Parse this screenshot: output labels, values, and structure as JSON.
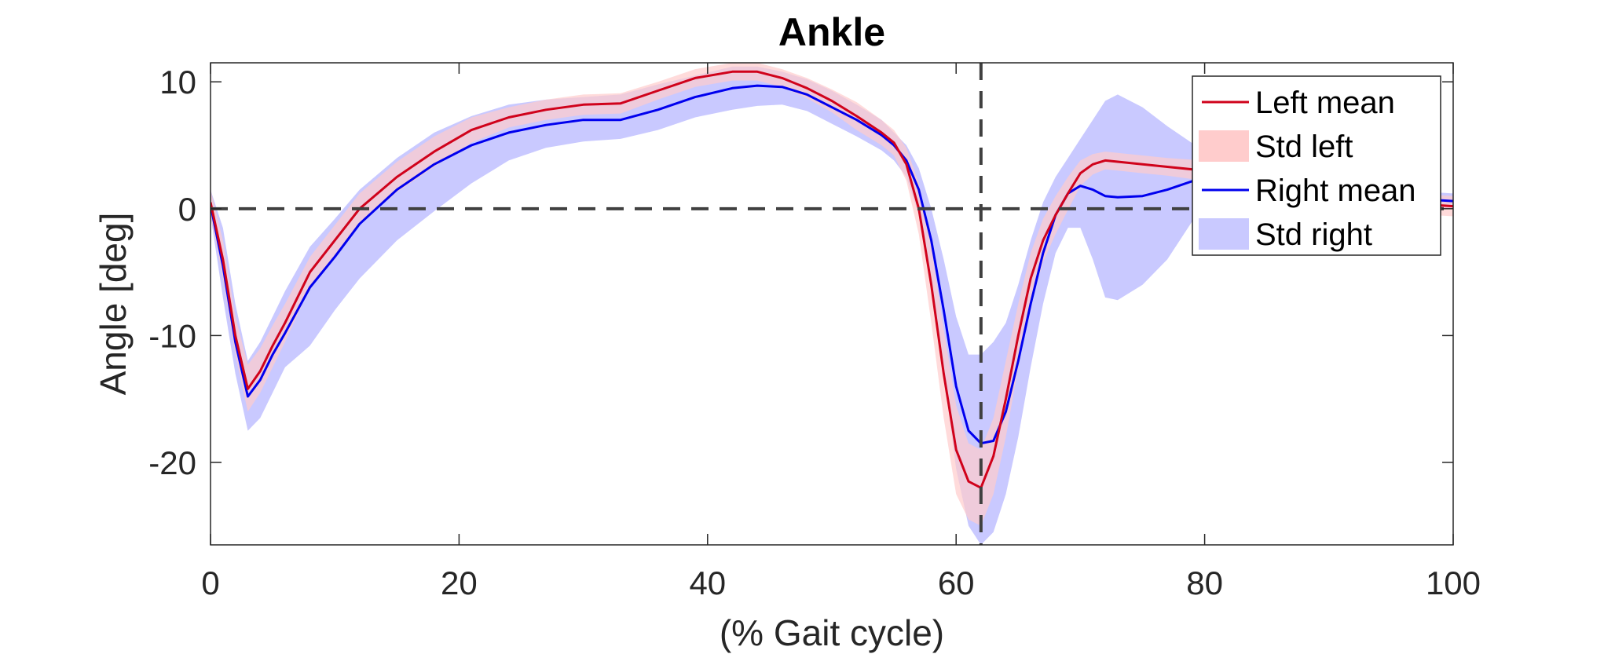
{
  "chart_data": {
    "type": "line",
    "title": "Ankle",
    "xlabel": "(% Gait cycle)",
    "ylabel": "Angle [deg]",
    "xlim": [
      0,
      100
    ],
    "ylim": [
      -26.5,
      11.5
    ],
    "xticks": [
      0,
      20,
      40,
      60,
      80,
      100
    ],
    "yticks": [
      10,
      0,
      -10,
      -20
    ],
    "xtick_labels": [
      "0",
      "20",
      "40",
      "60",
      "80",
      "100"
    ],
    "ytick_labels": [
      "10",
      "0",
      "-10",
      "-20"
    ],
    "grid": false,
    "legend_position": "top-right",
    "reference_lines": {
      "horizontal_y": 0,
      "vertical_x": 62
    },
    "x": [
      0,
      1,
      2,
      3,
      4,
      5,
      6,
      8,
      10,
      12,
      15,
      18,
      21,
      24,
      27,
      30,
      33,
      36,
      39,
      42,
      44,
      46,
      48,
      50,
      52,
      54,
      55,
      56,
      57,
      58,
      59,
      60,
      61,
      62,
      63,
      64,
      65,
      66,
      67,
      68,
      69,
      70,
      71,
      72,
      73,
      75,
      77,
      80,
      85,
      90,
      95,
      100
    ],
    "series": [
      {
        "name": "Left mean",
        "color": "#d0021b",
        "values": [
          0.5,
          -4,
          -10,
          -14.2,
          -12.8,
          -10.8,
          -9,
          -5,
          -2.5,
          0,
          2.5,
          4.5,
          6.2,
          7.2,
          7.8,
          8.2,
          8.3,
          9.3,
          10.3,
          10.8,
          10.8,
          10.3,
          9.5,
          8.5,
          7.3,
          6,
          5.2,
          3.5,
          0,
          -6,
          -13,
          -19,
          -21.5,
          -22,
          -19.5,
          -15,
          -10,
          -5.5,
          -2.5,
          -0.5,
          1.2,
          2.8,
          3.5,
          3.8,
          3.7,
          3.5,
          3.3,
          3.0,
          2.2,
          1.2,
          0.5,
          0.2
        ]
      },
      {
        "name": "Std left",
        "color": "#ffcccc",
        "upper": [
          1.5,
          -2.5,
          -8.5,
          -12.3,
          -11,
          -9.2,
          -7.5,
          -3.8,
          -1.3,
          1.2,
          3.7,
          5.7,
          7.2,
          8,
          8.6,
          9,
          9.1,
          10,
          11,
          11.5,
          11.5,
          11,
          10.3,
          9.4,
          8.4,
          7,
          6.2,
          4.8,
          2,
          -3,
          -9.5,
          -15.5,
          -18.5,
          -19,
          -16.5,
          -12,
          -7.5,
          -3.5,
          -0.8,
          1,
          2.5,
          3.8,
          4.3,
          4.5,
          4.4,
          4.2,
          4.0,
          3.8,
          3.0,
          2.0,
          1.3,
          1.0
        ],
        "lower": [
          -0.5,
          -5.5,
          -11.5,
          -16,
          -14.5,
          -12.5,
          -10.5,
          -6.2,
          -3.7,
          -1.2,
          1.3,
          3.3,
          5.2,
          6.4,
          7,
          7.4,
          7.5,
          8.6,
          9.6,
          10.1,
          10.1,
          9.6,
          8.7,
          7.6,
          6.2,
          5,
          4.2,
          2.2,
          -2,
          -9,
          -16.5,
          -22.5,
          -24.5,
          -25,
          -22.5,
          -18,
          -12.5,
          -7.5,
          -4.2,
          -2,
          -0.1,
          1.8,
          2.7,
          3.1,
          3.0,
          2.8,
          2.6,
          2.2,
          1.4,
          0.4,
          -0.3,
          -0.6
        ]
      },
      {
        "name": "Right mean",
        "color": "#0000ee",
        "values": [
          0.3,
          -4.5,
          -10.5,
          -14.8,
          -13.5,
          -11.5,
          -9.8,
          -6.2,
          -3.8,
          -1.2,
          1.5,
          3.5,
          5,
          6,
          6.6,
          7,
          7,
          7.8,
          8.8,
          9.5,
          9.7,
          9.6,
          9,
          8,
          7,
          5.8,
          5,
          3.8,
          1.5,
          -2.5,
          -8,
          -14,
          -17.5,
          -18.5,
          -18.3,
          -16,
          -12,
          -7.5,
          -3.5,
          -0.5,
          1.2,
          1.8,
          1.5,
          1,
          0.9,
          1,
          1.5,
          2.5,
          2.2,
          1.4,
          0.9,
          0.6
        ]
      },
      {
        "name": "Std right",
        "color": "#c9c9ff",
        "upper": [
          1.5,
          -1.5,
          -7.5,
          -12,
          -10.5,
          -8.5,
          -6.5,
          -3,
          -0.8,
          1.5,
          4,
          6,
          7.3,
          8.2,
          8.6,
          8.8,
          9,
          9.8,
          10.5,
          11.2,
          11.2,
          10.8,
          10.2,
          9.3,
          8.2,
          7,
          6,
          5,
          3.2,
          0,
          -4,
          -8.5,
          -11.5,
          -11.5,
          -10.5,
          -9,
          -6,
          -2.5,
          0.5,
          2.5,
          4,
          5.5,
          7,
          8.5,
          9,
          8,
          6.5,
          4.5,
          3,
          2,
          1.5,
          1.2
        ],
        "lower": [
          -0.5,
          -7,
          -13,
          -17.5,
          -16.5,
          -14.5,
          -12.5,
          -10.8,
          -8,
          -5.5,
          -2.5,
          -0.2,
          2,
          3.8,
          4.8,
          5.3,
          5.5,
          6.2,
          7.2,
          7.8,
          8.1,
          8.2,
          7.7,
          6.7,
          5.7,
          4.6,
          3.8,
          2.5,
          -0.5,
          -5.5,
          -13,
          -20.5,
          -25,
          -26.5,
          -25.5,
          -22.5,
          -18,
          -12.5,
          -7.5,
          -3.5,
          -1.5,
          -1.5,
          -4,
          -7,
          -7.2,
          -6,
          -4,
          0.5,
          1.2,
          0.8,
          0.3,
          0
        ]
      }
    ]
  }
}
